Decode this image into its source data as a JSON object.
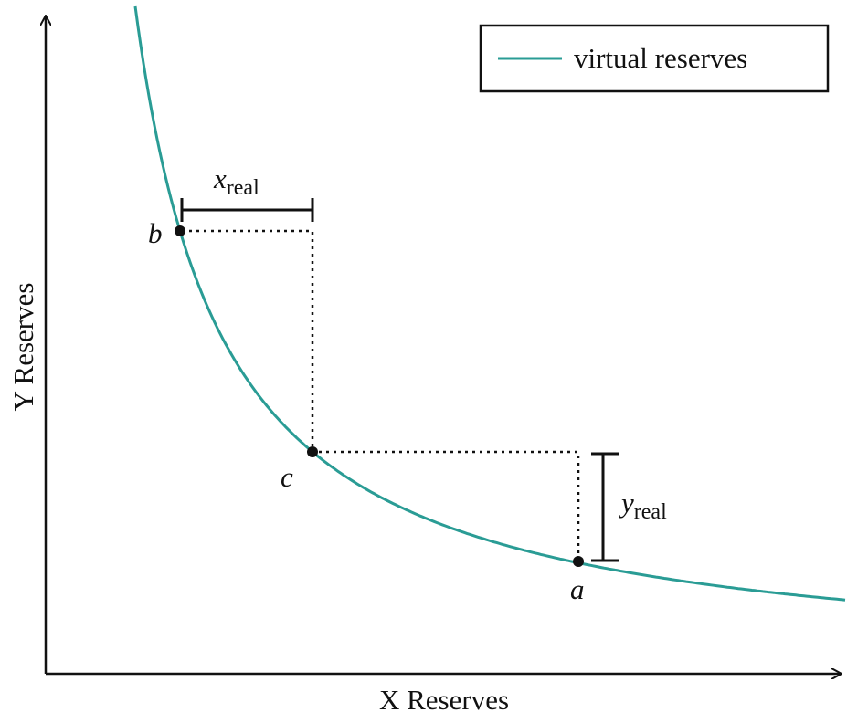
{
  "axes": {
    "x_label": "X Reserves",
    "y_label": "Y Reserves"
  },
  "legend": {
    "label": "virtual reserves"
  },
  "points": [
    {
      "label": "b"
    },
    {
      "label": "c"
    },
    {
      "label": "a"
    }
  ],
  "measures": [
    {
      "symbol": "x",
      "subscript": "real"
    },
    {
      "symbol": "y",
      "subscript": "real"
    }
  ]
}
